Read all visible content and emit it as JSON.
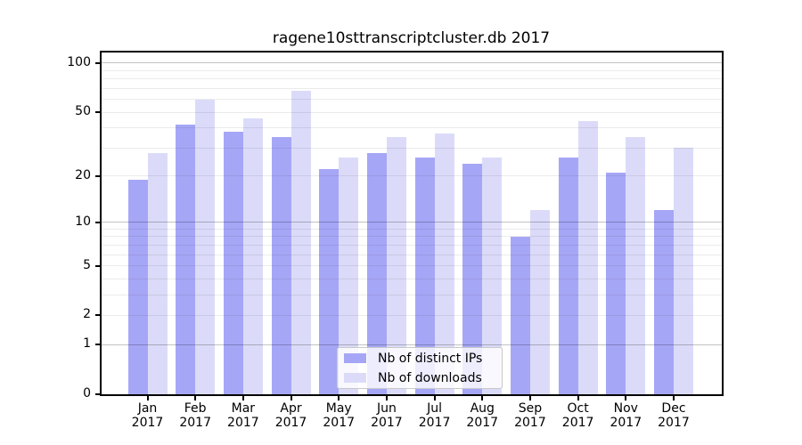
{
  "chart_data": {
    "type": "bar",
    "title": "ragene10sttranscriptcluster.db 2017",
    "x": {
      "categories": [
        "Jan",
        "Feb",
        "Mar",
        "Apr",
        "May",
        "Jun",
        "Jul",
        "Aug",
        "Sep",
        "Oct",
        "Nov",
        "Dec"
      ],
      "year": "2017"
    },
    "series": [
      {
        "name": "Nb of distinct IPs",
        "color": "#a6a6f7",
        "values": [
          19,
          42,
          38,
          35,
          22,
          28,
          26,
          24,
          8,
          26,
          21,
          12
        ]
      },
      {
        "name": "Nb of downloads",
        "color": "#dbdbf9",
        "values": [
          28,
          60,
          46,
          68,
          26,
          35,
          37,
          26,
          12,
          44,
          35,
          30
        ]
      }
    ],
    "y_axis": {
      "scale": "log1p",
      "tick_labels": [
        0,
        1,
        2,
        5,
        10,
        20,
        50,
        100
      ],
      "major_gridlines": [
        1,
        10,
        100
      ],
      "minor_gridlines": [
        2,
        3,
        4,
        5,
        6,
        7,
        8,
        9,
        20,
        30,
        40,
        50,
        60,
        70,
        80,
        90
      ],
      "range_max": 116
    },
    "legend": {
      "position": "lower center"
    },
    "grid": true
  }
}
